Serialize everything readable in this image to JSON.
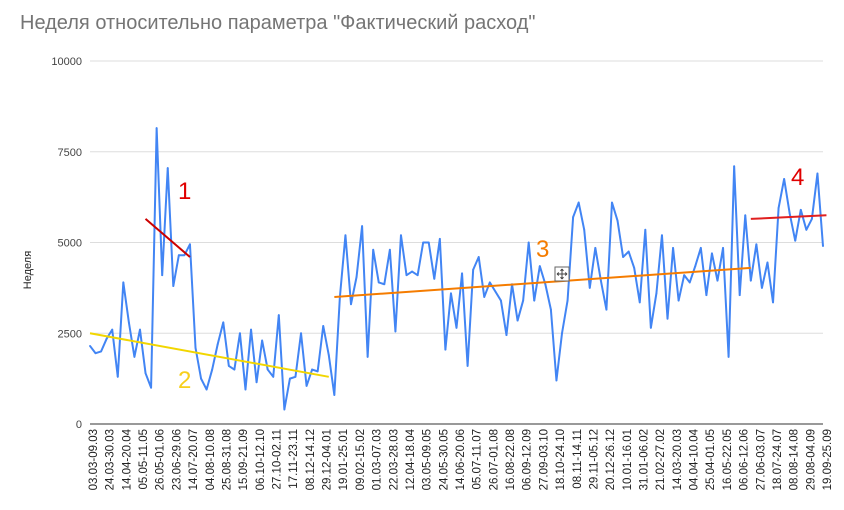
{
  "chart_data": {
    "type": "line",
    "title": "Неделя относительно параметра \"Фактический расход\"",
    "xlabel": "",
    "ylabel": "Неделя",
    "ylim": [
      0,
      10000
    ],
    "yticks": [
      0,
      2500,
      5000,
      7500,
      10000
    ],
    "ytick_labels": [
      "0",
      "2500",
      "5000",
      "7500",
      "10000"
    ],
    "grid": true,
    "legend": "none",
    "series_color": "#4285f4",
    "xtick_labels": [
      "03.03-09.03",
      "24.03-30.03",
      "14.04-20.04",
      "05.05-11.05",
      "26.05-01.06",
      "23.06-29.06",
      "14.07-20.07",
      "04.08-10.08",
      "25.08-31.08",
      "15.09-21.09",
      "06.10-12.10",
      "27.10-02.11",
      "17.11-23.11",
      "08.12-14.12",
      "29.12-04.01",
      "19.01-25.01",
      "09.02-15.02",
      "01.03-07.03",
      "22.03-28.03",
      "12.04-18.04",
      "03.05-09.05",
      "24.05-30.05",
      "14.06-20.06",
      "05.07-11.07",
      "26.07-01.08",
      "16.08-22.08",
      "06.09-12.09",
      "27.09-03.10",
      "18.10-24.10",
      "08.11-14.11",
      "29.11-05.12",
      "20.12-26.12",
      "10.01-16.01",
      "31.01-06.02",
      "21.02-27.02",
      "14.03-20.03",
      "04.04-10.04",
      "25.04-01.05",
      "16.05-22.05",
      "06.06-12.06",
      "27.06-03.07",
      "18.07-24.07",
      "08.08-14.08",
      "29.08-04.09",
      "19.09-25.09"
    ],
    "series": [
      {
        "values": [
          2150,
          1950,
          2000,
          2350,
          2600,
          1300,
          3900,
          2800,
          1850,
          2600,
          1400,
          1000,
          8150,
          4100,
          7050,
          3800,
          4650,
          4650,
          4950,
          2100,
          1250,
          950,
          1500,
          2200,
          2800,
          1600,
          1500,
          2500,
          950,
          2600,
          1150,
          2300,
          1500,
          1300,
          3000,
          400,
          1250,
          1300,
          2500,
          1050,
          1500,
          1450,
          2700,
          1900,
          800,
          3500,
          5200,
          3300,
          4050,
          5450,
          1850,
          4800,
          3900,
          3850,
          4800,
          2550,
          5200,
          4100,
          4200,
          4100,
          5000,
          5000,
          4000,
          5100,
          2050,
          3600,
          2650,
          4150,
          1600,
          4250,
          4600,
          3500,
          3900,
          3650,
          3400,
          2450,
          3850,
          2850,
          3400,
          5000,
          3400,
          4350,
          3850,
          3150,
          1200,
          2500,
          3400,
          5700,
          6100,
          5350,
          3750,
          4850,
          3950,
          3150,
          6100,
          5600,
          4600,
          4750,
          4300,
          3350,
          5350,
          2650,
          3600,
          5200,
          2900,
          4850,
          3400,
          4100,
          3900,
          4350,
          4850,
          3550,
          4700,
          3950,
          4850,
          1850,
          7100,
          3550,
          5750,
          3950,
          4950,
          3750,
          4450,
          3350,
          5950,
          6750,
          5800,
          5050,
          5900,
          5350,
          5650,
          6900,
          4900
        ]
      }
    ],
    "trendlines": [
      {
        "label": "1",
        "color": "#cc0000",
        "from": [
          10,
          5650
        ],
        "to": [
          18,
          4600
        ]
      },
      {
        "label": "2",
        "color": "#f2d600",
        "from": [
          0,
          2500
        ],
        "to": [
          43,
          1300
        ]
      },
      {
        "label": "3",
        "color": "#f57c00",
        "from": [
          44,
          3500
        ],
        "to": [
          119,
          4300
        ]
      },
      {
        "label": "4",
        "color": "#e01f1f",
        "from": [
          119,
          5650
        ],
        "to": [
          131,
          5750
        ]
      }
    ],
    "annotations": [
      "1",
      "2",
      "3",
      "4"
    ]
  }
}
